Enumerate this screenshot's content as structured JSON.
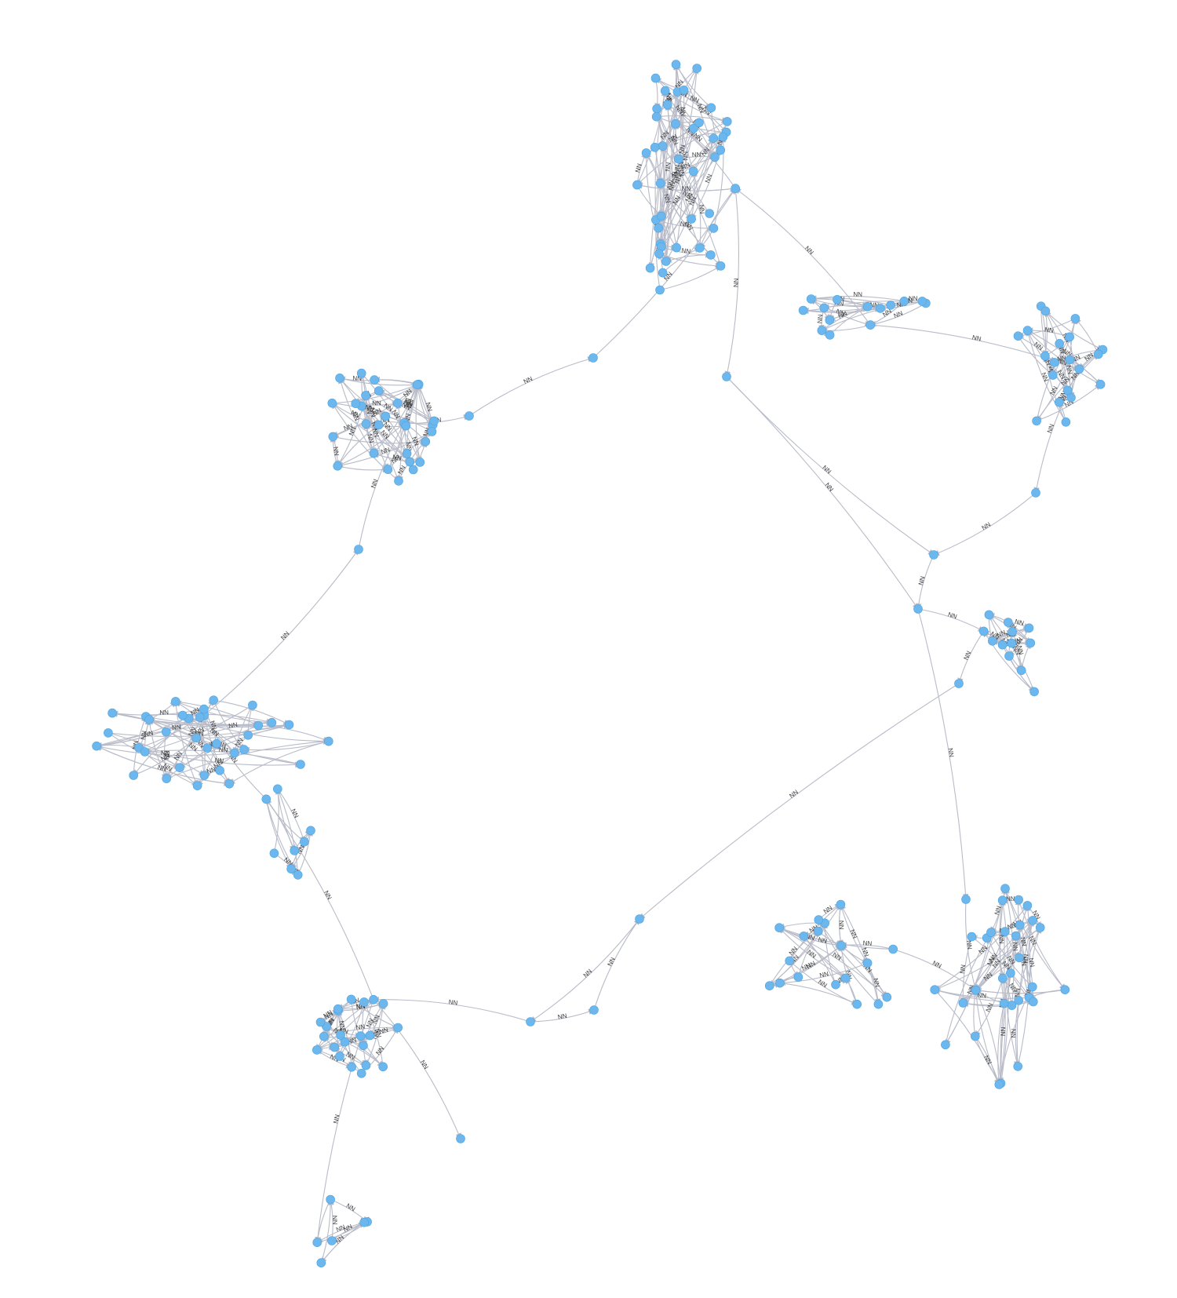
{
  "graph": {
    "colors": {
      "node": "#6cb8ee",
      "edge": "#b9bcc8",
      "label": "#3a3a3a",
      "background": "#ffffff"
    },
    "relation_label": "NN",
    "node_count": 208,
    "edge_count": 272
  }
}
